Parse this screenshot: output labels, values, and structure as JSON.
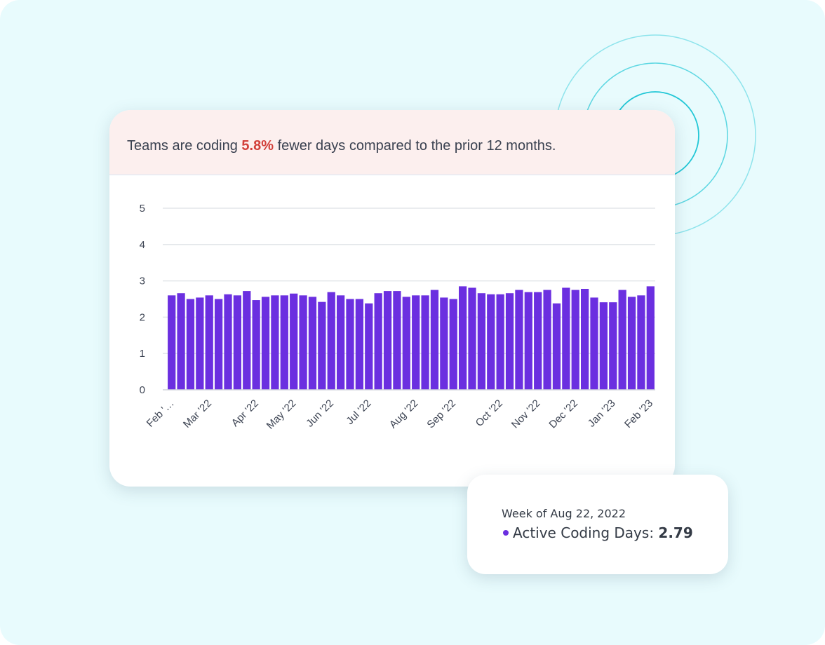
{
  "headline": {
    "prefix": "Teams are coding ",
    "percent": "5.8%",
    "suffix": " fewer days compared to the prior 12 months."
  },
  "colors": {
    "bar": "#6b2fe0",
    "percent": "#d2403a",
    "banner_bg": "#fcefee",
    "page_bg": "#e8fbfd",
    "ring": "#22c7d6"
  },
  "chart_data": {
    "type": "bar",
    "ylim": [
      0,
      5
    ],
    "yticks": [
      0,
      1,
      2,
      3,
      4,
      5
    ],
    "grid": true,
    "x_tick_labels": [
      "Feb '…",
      "Mar '22",
      "Apr '22",
      "May '22",
      "Jun '22",
      "Jul '22",
      "Aug '22",
      "Sep '22",
      "Oct '22",
      "Nov '22",
      "Dec '22",
      "Jan '23",
      "Feb '23"
    ],
    "x_tick_bar_index": [
      0,
      4,
      9,
      13,
      17,
      21,
      26,
      30,
      35,
      39,
      43,
      47,
      51
    ],
    "values": [
      2.6,
      2.66,
      2.5,
      2.54,
      2.6,
      2.5,
      2.63,
      2.6,
      2.72,
      2.47,
      2.56,
      2.6,
      2.6,
      2.65,
      2.6,
      2.56,
      2.42,
      2.69,
      2.6,
      2.5,
      2.5,
      2.38,
      2.66,
      2.72,
      2.72,
      2.56,
      2.6,
      2.6,
      2.75,
      2.54,
      2.5,
      2.85,
      2.81,
      2.66,
      2.63,
      2.63,
      2.66,
      2.75,
      2.69,
      2.69,
      2.75,
      2.38,
      2.81,
      2.75,
      2.78,
      2.54,
      2.41,
      2.41,
      2.75,
      2.56,
      2.6,
      2.85
    ]
  },
  "tooltip": {
    "title": "Week of Aug 22, 2022",
    "series_label": "Active Coding Days: ",
    "value": "2.79"
  }
}
